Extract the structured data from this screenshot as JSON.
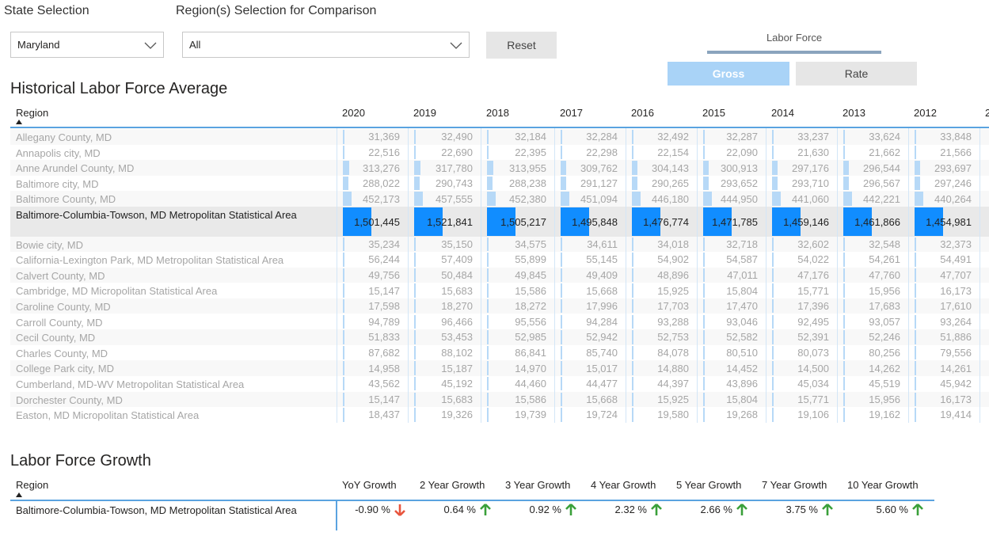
{
  "filters": {
    "state_label": "State Selection",
    "state_value": "Maryland",
    "region_label": "Region(s) Selection for Comparison",
    "region_value": "All",
    "reset": "Reset"
  },
  "toggle": {
    "label": "Labor Force",
    "options": [
      "Gross",
      "Rate"
    ]
  },
  "history": {
    "title": "Historical Labor Force Average",
    "columns": [
      "Region",
      "2020",
      "2019",
      "2018",
      "2017",
      "2016",
      "2015",
      "2014",
      "2013",
      "2012",
      "2"
    ],
    "rows": [
      [
        "Allegany County, MD",
        "31,369",
        "32,490",
        "32,184",
        "32,284",
        "32,492",
        "32,287",
        "33,237",
        "33,624",
        "33,848"
      ],
      [
        "Annapolis city, MD",
        "22,516",
        "22,690",
        "22,395",
        "22,298",
        "22,154",
        "22,090",
        "21,630",
        "21,662",
        "21,566"
      ],
      [
        "Anne Arundel County, MD",
        "313,276",
        "317,780",
        "313,955",
        "309,762",
        "304,143",
        "300,913",
        "297,176",
        "296,544",
        "293,697"
      ],
      [
        "Baltimore city, MD",
        "288,022",
        "290,743",
        "288,238",
        "291,127",
        "290,265",
        "293,652",
        "293,710",
        "296,567",
        "297,246"
      ],
      [
        "Baltimore County, MD",
        "452,173",
        "457,555",
        "452,380",
        "451,094",
        "446,180",
        "444,950",
        "441,060",
        "442,221",
        "440,264"
      ],
      [
        "Baltimore-Columbia-Towson, MD Metropolitan Statistical Area",
        "1,501,445",
        "1,521,841",
        "1,505,217",
        "1,495,848",
        "1,476,774",
        "1,471,785",
        "1,459,146",
        "1,461,866",
        "1,454,981"
      ],
      [
        "Bowie city, MD",
        "35,234",
        "35,150",
        "34,575",
        "34,611",
        "34,018",
        "32,718",
        "32,602",
        "32,548",
        "32,373"
      ],
      [
        "California-Lexington Park, MD Metropolitan Statistical Area",
        "56,244",
        "57,409",
        "55,899",
        "55,145",
        "54,902",
        "54,587",
        "54,022",
        "54,261",
        "54,491"
      ],
      [
        "Calvert County, MD",
        "49,756",
        "50,484",
        "49,845",
        "49,409",
        "48,896",
        "47,011",
        "47,176",
        "47,760",
        "47,707"
      ],
      [
        "Cambridge, MD Micropolitan Statistical Area",
        "15,147",
        "15,683",
        "15,586",
        "15,668",
        "15,925",
        "15,804",
        "15,771",
        "15,956",
        "16,173"
      ],
      [
        "Caroline County, MD",
        "17,598",
        "18,270",
        "18,272",
        "17,996",
        "17,703",
        "17,470",
        "17,396",
        "17,683",
        "17,610"
      ],
      [
        "Carroll County, MD",
        "94,789",
        "96,466",
        "95,556",
        "94,284",
        "93,288",
        "93,046",
        "92,495",
        "93,057",
        "93,264"
      ],
      [
        "Cecil County, MD",
        "51,833",
        "53,453",
        "52,985",
        "52,942",
        "52,753",
        "52,582",
        "52,391",
        "52,246",
        "51,886"
      ],
      [
        "Charles County, MD",
        "87,682",
        "88,102",
        "86,841",
        "85,740",
        "84,078",
        "80,510",
        "80,073",
        "80,256",
        "79,556"
      ],
      [
        "College Park city, MD",
        "14,958",
        "15,187",
        "14,970",
        "15,017",
        "14,880",
        "14,452",
        "14,500",
        "14,262",
        "14,261"
      ],
      [
        "Cumberland, MD-WV Metropolitan Statistical Area",
        "43,562",
        "45,192",
        "44,460",
        "44,477",
        "44,397",
        "43,896",
        "45,034",
        "45,519",
        "45,942"
      ],
      [
        "Dorchester County, MD",
        "15,147",
        "15,683",
        "15,586",
        "15,668",
        "15,925",
        "15,804",
        "15,771",
        "15,956",
        "16,173"
      ],
      [
        "Easton, MD Micropolitan Statistical Area",
        "18,437",
        "19,326",
        "19,739",
        "19,724",
        "19,580",
        "19,268",
        "19,106",
        "19,162",
        "19,414"
      ]
    ]
  },
  "growth": {
    "title": "Labor Force Growth",
    "columns": [
      "Region",
      "YoY Growth",
      "2 Year Growth",
      "3 Year Growth",
      "4 Year Growth",
      "5 Year Growth",
      "7 Year Growth",
      "10 Year Growth"
    ],
    "rows": [
      [
        "Baltimore-Columbia-Towson, MD Metropolitan Statistical Area",
        "-0.90 %",
        "0.64 %",
        "0.92 %",
        "2.32 %",
        "2.66 %",
        "3.75 %",
        "5.60 %"
      ]
    ]
  }
}
